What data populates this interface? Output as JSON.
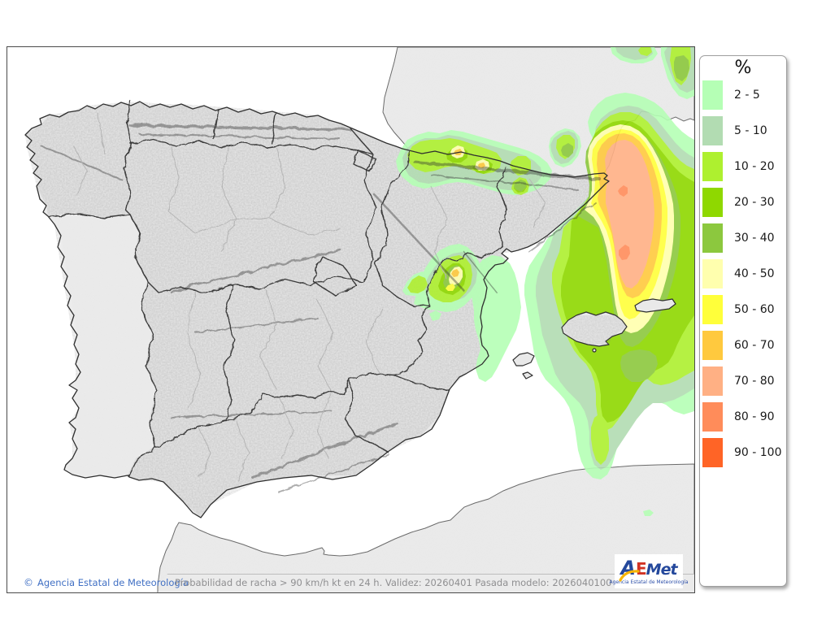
{
  "legend": {
    "title": "%",
    "items": [
      {
        "label": "2 - 5",
        "color": "#b5ffb5"
      },
      {
        "label": "5 - 10",
        "color": "#b2dcb2"
      },
      {
        "label": "10 - 20",
        "color": "#aef02f"
      },
      {
        "label": "20 - 30",
        "color": "#8fd800"
      },
      {
        "label": "30 - 40",
        "color": "#8cc83e"
      },
      {
        "label": "40 - 50",
        "color": "#ffffae"
      },
      {
        "label": "50 - 60",
        "color": "#ffff3a"
      },
      {
        "label": "60 - 70",
        "color": "#ffc93e"
      },
      {
        "label": "70 - 80",
        "color": "#ffb084"
      },
      {
        "label": "80 - 90",
        "color": "#ff8c5a"
      },
      {
        "label": "90 - 100",
        "color": "#ff6426"
      }
    ]
  },
  "footer": {
    "copyright_symbol": "©",
    "copyright": "Agencia Estatal de Meteorología",
    "info": "Probabilidad de racha > 90 km/h kt en 24 h. Validez: 20260401 Pasada modelo: 2026040100"
  },
  "logo": {
    "a": "A",
    "e": "E",
    "met": "Met",
    "subtitle": "Agencia Estatal de Meteorología"
  },
  "map_colors": {
    "sea": "#ffffff",
    "land": "#e9e9e9",
    "land_flat": "#ececec",
    "coast": "#2f2f2f",
    "region_border": "#3b3b3b",
    "province_border": "#b5b5b5"
  }
}
